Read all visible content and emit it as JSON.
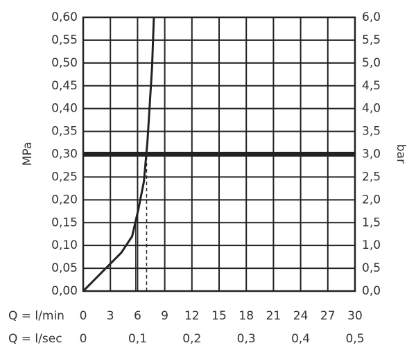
{
  "chart_data": {
    "type": "line",
    "y_label": "MPa",
    "y2_label": "bar",
    "x_label": "Q = l/min",
    "x2_label": "Q = l/sec",
    "xlim": [
      0,
      30
    ],
    "xticks": [
      0,
      3,
      6,
      9,
      12,
      15,
      18,
      21,
      24,
      27,
      30
    ],
    "x2lim": [
      0,
      0.5
    ],
    "x2ticks": [
      0,
      {
        "value": 0.1,
        "label": "0,1"
      },
      {
        "value": 0.2,
        "label": "0,2"
      },
      {
        "value": 0.3,
        "label": "0,3"
      },
      {
        "value": 0.4,
        "label": "0,4"
      },
      {
        "value": 0.5,
        "label": "0,5"
      }
    ],
    "ylim": [
      0,
      0.6
    ],
    "yticks": [
      {
        "value": 0,
        "label": "0,00"
      },
      {
        "value": 0.05,
        "label": "0,05"
      },
      {
        "value": 0.1,
        "label": "0,10"
      },
      {
        "value": 0.15,
        "label": "0,15"
      },
      {
        "value": 0.2,
        "label": "0,20"
      },
      {
        "value": 0.25,
        "label": "0,25"
      },
      {
        "value": 0.3,
        "label": "0,30"
      },
      {
        "value": 0.35,
        "label": "0,35"
      },
      {
        "value": 0.4,
        "label": "0,40"
      },
      {
        "value": 0.45,
        "label": "0,45"
      },
      {
        "value": 0.5,
        "label": "0,50"
      },
      {
        "value": 0.55,
        "label": "0,55"
      },
      {
        "value": 0.6,
        "label": "0,60"
      }
    ],
    "y2lim": [
      0,
      6
    ],
    "y2ticks": [
      {
        "value": 0,
        "label": "0,0"
      },
      {
        "value": 0.5,
        "label": "0,5"
      },
      {
        "value": 1,
        "label": "1,0"
      },
      {
        "value": 1.5,
        "label": "1,5"
      },
      {
        "value": 2,
        "label": "2,0"
      },
      {
        "value": 2.5,
        "label": "2,5"
      },
      {
        "value": 3,
        "label": "3,0"
      },
      {
        "value": 3.5,
        "label": "3,5"
      },
      {
        "value": 4,
        "label": "4,0"
      },
      {
        "value": 4.5,
        "label": "4,5"
      },
      {
        "value": 5,
        "label": "5,0"
      },
      {
        "value": 5.5,
        "label": "5,5"
      },
      {
        "value": 6,
        "label": "6,0"
      }
    ],
    "grid": true,
    "series": [
      {
        "color": "#222222",
        "x": [
          0,
          2.3,
          4.2,
          5.4,
          6.1,
          6.7,
          7.1,
          7.6,
          7.8
        ],
        "values": [
          0,
          0.046,
          0.084,
          0.12,
          0.18,
          0.24,
          0.33,
          0.49,
          0.6
        ]
      }
    ],
    "hline": 0.3,
    "reference_lines": [
      {
        "x": 5.8,
        "y": 0.16,
        "style": "solid"
      },
      {
        "x": 7,
        "y": 0.3,
        "style": "dashed"
      }
    ]
  }
}
